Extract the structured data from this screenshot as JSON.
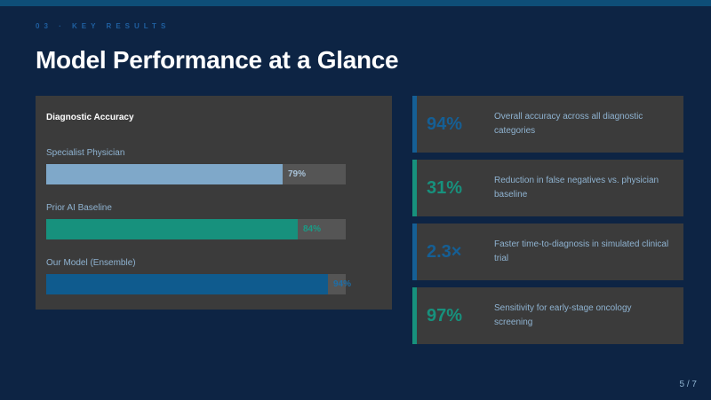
{
  "header": {
    "kicker": "03 · KEY RESULTS",
    "title": "Model Performance at a Glance"
  },
  "colors": {
    "background": "#0d2444",
    "card": "#3b3b3b",
    "light_blue": "#7fa8c9",
    "teal": "#17917d",
    "dark_blue": "#0f5b8e"
  },
  "chart": {
    "title": "Diagnostic Accuracy",
    "bars": [
      {
        "label": "Specialist Physician",
        "value_text": "79%",
        "fraction": 0.79,
        "color": "#7fa8c9",
        "text_color": "#a9c3d9"
      },
      {
        "label": "Prior AI Baseline",
        "value_text": "84%",
        "fraction": 0.84,
        "color": "#17917d",
        "text_color": "#1a9c86"
      },
      {
        "label": "Our Model (Ensemble)",
        "value_text": "94%",
        "fraction": 0.94,
        "color": "#0f5b8e",
        "text_color": "#1f6ea6"
      }
    ]
  },
  "stats": [
    {
      "value": "94%",
      "desc": "Overall accuracy across all diagnostic categories",
      "color": "#155f95",
      "accent": "#155f95"
    },
    {
      "value": "31%",
      "desc": "Reduction in false negatives vs. physician baseline",
      "color": "#17917d",
      "accent": "#17917d"
    },
    {
      "value": "2.3×",
      "desc": "Faster time-to-diagnosis in simulated clinical trial",
      "color": "#155f95",
      "accent": "#155f95"
    },
    {
      "value": "97%",
      "desc": "Sensitivity for early-stage oncology screening",
      "color": "#17917d",
      "accent": "#17917d"
    }
  ],
  "footer": {
    "page": "5 / 7"
  }
}
